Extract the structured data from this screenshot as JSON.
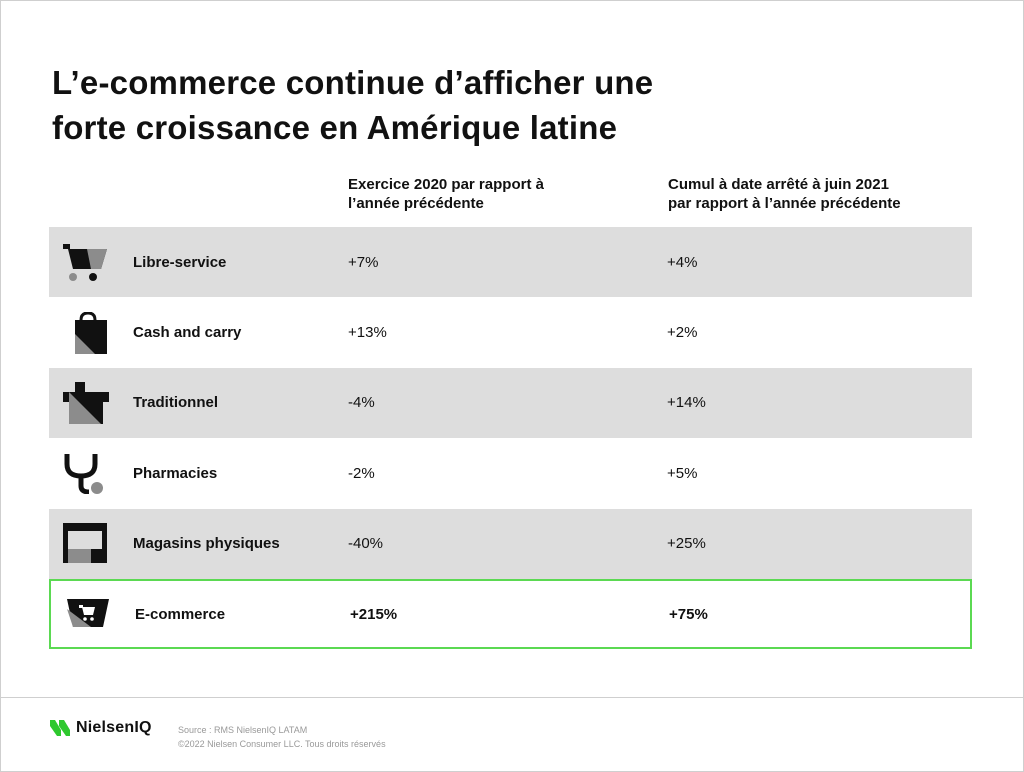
{
  "title": {
    "line1": "L’e-commerce continue d’afficher une",
    "line2": "forte croissance en Amérique latine"
  },
  "columns": {
    "col1": {
      "line1": "Exercice 2020 par rapport à",
      "line2": "l’année précédente"
    },
    "col2": {
      "line1": "Cumul à date arrêté à juin 2021",
      "line2": "par rapport à l’année précédente"
    }
  },
  "rows": [
    {
      "icon": "shopping-cart-icon",
      "label": "Libre-service",
      "v1": "+7%",
      "v2": "+4%"
    },
    {
      "icon": "shopping-bag-icon",
      "label": "Cash and carry",
      "v1": "+13%",
      "v2": "+2%"
    },
    {
      "icon": "storefront-icon",
      "label": "Traditionnel",
      "v1": "-4%",
      "v2": "+14%"
    },
    {
      "icon": "stethoscope-icon",
      "label": "Pharmacies",
      "v1": "-2%",
      "v2": "+5%"
    },
    {
      "icon": "market-stall-icon",
      "label": "Magasins physiques",
      "v1": "-40%",
      "v2": "+25%"
    },
    {
      "icon": "online-cart-icon",
      "label": "E-commerce",
      "v1": "+215%",
      "v2": "+75%"
    }
  ],
  "footer": {
    "brand": "NielsenIQ",
    "source": "Source : RMS NielsenIQ LATAM",
    "copyright": "©2022 Nielsen Consumer LLC. Tous droits réservés"
  },
  "colors": {
    "highlight_border": "#5bd952",
    "shaded_row": "#dddddd",
    "logo_green": "#2ec82e"
  }
}
